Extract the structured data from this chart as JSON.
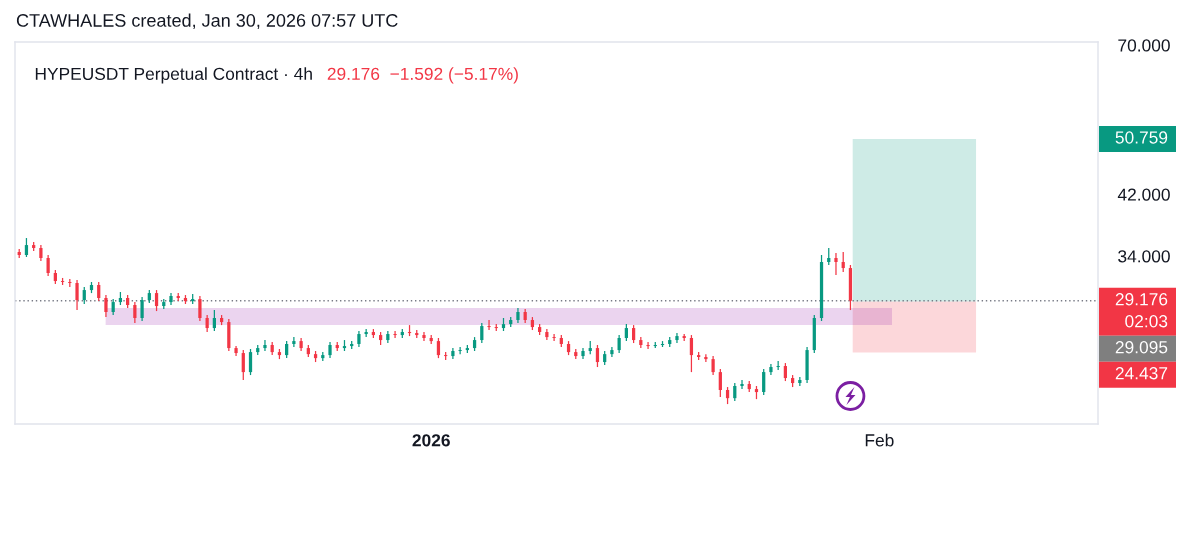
{
  "chart_data": {
    "type": "candlestick",
    "title": "HYPEUSDT Perpetual Contract · 4h",
    "subtitle": "29.176  −1.592 (−5.17%)",
    "annotations": [
      "CTAWHALES created, Jan 30, 2026 07:57 UTC",
      "50.759",
      "29.095",
      "24.437"
    ],
    "x": [
      "2025-12-03T12:00",
      "2025-12-04T00:00",
      "2025-12-04T12:00",
      "2025-12-05T00:00",
      "2025-12-05T12:00",
      "2025-12-06T00:00",
      "2025-12-06T12:00",
      "2025-12-07T00:00",
      "2025-12-07T12:00",
      "2025-12-08T00:00",
      "2025-12-08T12:00",
      "2025-12-09T00:00",
      "2025-12-09T12:00",
      "2025-12-10T00:00",
      "2025-12-10T12:00",
      "2025-12-11T00:00",
      "2025-12-11T12:00",
      "2025-12-12T00:00",
      "2025-12-12T12:00",
      "2025-12-13T00:00",
      "2025-12-13T12:00",
      "2025-12-14T00:00",
      "2025-12-14T12:00",
      "2025-12-15T00:00",
      "2025-12-15T12:00",
      "2025-12-16T00:00",
      "2025-12-16T12:00",
      "2025-12-17T00:00",
      "2025-12-17T12:00",
      "2025-12-18T00:00",
      "2025-12-18T12:00",
      "2025-12-19T00:00",
      "2025-12-19T12:00",
      "2025-12-20T00:00",
      "2025-12-20T12:00",
      "2025-12-21T00:00",
      "2025-12-21T12:00",
      "2025-12-22T00:00",
      "2025-12-22T12:00",
      "2025-12-23T00:00",
      "2025-12-23T12:00",
      "2025-12-24T00:00",
      "2025-12-24T12:00",
      "2025-12-25T00:00",
      "2025-12-25T12:00",
      "2025-12-26T00:00",
      "2025-12-26T12:00",
      "2025-12-27T00:00",
      "2025-12-27T12:00",
      "2025-12-28T00:00",
      "2025-12-28T12:00",
      "2025-12-29T00:00",
      "2025-12-29T12:00",
      "2025-12-30T00:00",
      "2025-12-30T12:00",
      "2025-12-31T00:00",
      "2025-12-31T12:00",
      "2026-01-01T00:00",
      "2026-01-01T12:00",
      "2026-01-02T00:00",
      "2026-01-02T12:00",
      "2026-01-03T00:00",
      "2026-01-03T12:00",
      "2026-01-04T00:00",
      "2026-01-04T12:00",
      "2026-01-05T00:00",
      "2026-01-05T12:00",
      "2026-01-06T00:00",
      "2026-01-06T12:00",
      "2026-01-07T00:00",
      "2026-01-07T12:00",
      "2026-01-08T00:00",
      "2026-01-08T12:00",
      "2026-01-09T00:00",
      "2026-01-09T12:00",
      "2026-01-10T00:00",
      "2026-01-10T12:00",
      "2026-01-11T00:00",
      "2026-01-11T12:00",
      "2026-01-12T00:00",
      "2026-01-12T12:00",
      "2026-01-13T00:00",
      "2026-01-13T12:00",
      "2026-01-14T00:00",
      "2026-01-14T12:00",
      "2026-01-15T00:00",
      "2026-01-15T12:00",
      "2026-01-16T00:00",
      "2026-01-16T12:00",
      "2026-01-17T00:00",
      "2026-01-17T12:00",
      "2026-01-18T00:00",
      "2026-01-18T12:00",
      "2026-01-19T00:00",
      "2026-01-19T12:00",
      "2026-01-20T00:00",
      "2026-01-20T12:00",
      "2026-01-21T00:00",
      "2026-01-21T12:00",
      "2026-01-22T00:00",
      "2026-01-22T12:00",
      "2026-01-23T00:00",
      "2026-01-23T12:00",
      "2026-01-24T00:00",
      "2026-01-24T12:00",
      "2026-01-25T00:00",
      "2026-01-25T12:00",
      "2026-01-26T00:00",
      "2026-01-26T12:00",
      "2026-01-27T00:00",
      "2026-01-27T12:00",
      "2026-01-28T00:00",
      "2026-01-28T12:00",
      "2026-01-29T00:00",
      "2026-01-29T12:00",
      "2026-01-30T00:00"
    ],
    "ohlc": [
      [
        34.47,
        34.83,
        33.77,
        34.12
      ],
      [
        34.12,
        36.16,
        33.89,
        35.3
      ],
      [
        35.3,
        35.67,
        34.59,
        34.95
      ],
      [
        34.95,
        35.3,
        33.43,
        33.77
      ],
      [
        33.77,
        34.12,
        31.75,
        32.08
      ],
      [
        32.08,
        32.41,
        30.9,
        31.21
      ],
      [
        31.21,
        31.54,
        30.79,
        31.11
      ],
      [
        31.11,
        31.43,
        30.58,
        31.0
      ],
      [
        31.0,
        31.32,
        28.26,
        29.24
      ],
      [
        29.24,
        30.58,
        28.85,
        30.26
      ],
      [
        30.26,
        31.11,
        29.95,
        30.79
      ],
      [
        30.79,
        31.11,
        29.14,
        29.45
      ],
      [
        29.45,
        29.75,
        27.59,
        28.07
      ],
      [
        28.07,
        29.34,
        27.78,
        29.04
      ],
      [
        29.04,
        30.06,
        28.75,
        29.45
      ],
      [
        29.45,
        29.75,
        28.46,
        28.75
      ],
      [
        28.75,
        29.04,
        27.03,
        27.5
      ],
      [
        27.5,
        29.55,
        27.22,
        29.24
      ],
      [
        29.24,
        30.26,
        28.95,
        29.95
      ],
      [
        29.95,
        30.26,
        28.16,
        28.65
      ],
      [
        28.65,
        29.34,
        28.36,
        29.04
      ],
      [
        29.04,
        29.95,
        28.75,
        29.65
      ],
      [
        29.65,
        29.95,
        29.14,
        29.45
      ],
      [
        29.45,
        29.75,
        28.85,
        29.14
      ],
      [
        29.14,
        29.85,
        28.85,
        29.34
      ],
      [
        29.34,
        29.65,
        27.22,
        27.5
      ],
      [
        27.5,
        27.78,
        26.21,
        26.57
      ],
      [
        26.57,
        28.26,
        26.3,
        27.5
      ],
      [
        27.5,
        27.78,
        26.84,
        27.12
      ],
      [
        27.12,
        27.4,
        24.56,
        24.81
      ],
      [
        24.81,
        24.98,
        24.14,
        24.39
      ],
      [
        24.39,
        24.64,
        22.24,
        22.85
      ],
      [
        22.85,
        24.73,
        22.62,
        24.47
      ],
      [
        24.47,
        25.07,
        24.22,
        24.81
      ],
      [
        24.81,
        25.5,
        24.56,
        25.07
      ],
      [
        25.07,
        25.33,
        24.22,
        24.47
      ],
      [
        24.47,
        24.73,
        23.89,
        24.22
      ],
      [
        24.22,
        25.41,
        23.97,
        25.16
      ],
      [
        25.16,
        25.76,
        24.9,
        25.41
      ],
      [
        25.41,
        25.68,
        24.56,
        24.81
      ],
      [
        24.81,
        25.07,
        24.06,
        24.3
      ],
      [
        24.3,
        24.56,
        23.65,
        23.97
      ],
      [
        23.97,
        24.47,
        23.73,
        24.22
      ],
      [
        24.22,
        25.33,
        23.97,
        25.07
      ],
      [
        25.07,
        25.33,
        24.56,
        24.81
      ],
      [
        24.81,
        25.5,
        24.56,
        24.98
      ],
      [
        24.98,
        25.41,
        24.73,
        25.16
      ],
      [
        25.16,
        26.3,
        24.9,
        26.03
      ],
      [
        26.03,
        26.48,
        25.76,
        26.21
      ],
      [
        26.21,
        26.48,
        25.68,
        25.94
      ],
      [
        25.94,
        26.21,
        25.07,
        25.5
      ],
      [
        25.5,
        26.3,
        25.24,
        26.03
      ],
      [
        26.03,
        26.3,
        25.68,
        25.94
      ],
      [
        25.94,
        26.48,
        25.68,
        26.21
      ],
      [
        26.21,
        26.84,
        25.85,
        26.12
      ],
      [
        26.12,
        26.39,
        25.68,
        25.94
      ],
      [
        25.94,
        26.21,
        25.41,
        25.68
      ],
      [
        25.68,
        25.94,
        25.16,
        25.41
      ],
      [
        25.41,
        25.68,
        23.97,
        24.22
      ],
      [
        24.22,
        24.47,
        23.81,
        24.14
      ],
      [
        24.14,
        24.81,
        23.89,
        24.56
      ],
      [
        24.56,
        24.9,
        24.3,
        24.64
      ],
      [
        24.64,
        25.07,
        24.39,
        24.81
      ],
      [
        24.81,
        25.76,
        24.56,
        25.5
      ],
      [
        25.5,
        27.03,
        25.24,
        26.75
      ],
      [
        26.75,
        27.31,
        26.39,
        26.66
      ],
      [
        26.66,
        26.93,
        26.3,
        26.57
      ],
      [
        26.57,
        27.5,
        26.3,
        26.93
      ],
      [
        26.93,
        27.59,
        26.66,
        27.31
      ],
      [
        27.31,
        28.46,
        27.03,
        28.07
      ],
      [
        28.07,
        28.36,
        27.03,
        27.31
      ],
      [
        27.31,
        27.59,
        26.39,
        26.66
      ],
      [
        26.66,
        26.93,
        25.94,
        26.21
      ],
      [
        26.21,
        26.48,
        25.5,
        25.76
      ],
      [
        25.76,
        26.03,
        25.41,
        25.68
      ],
      [
        25.68,
        25.94,
        24.9,
        25.16
      ],
      [
        25.16,
        25.41,
        24.22,
        24.47
      ],
      [
        24.47,
        24.73,
        23.89,
        24.14
      ],
      [
        24.14,
        24.81,
        23.89,
        24.56
      ],
      [
        24.56,
        25.41,
        24.3,
        24.81
      ],
      [
        24.81,
        25.07,
        23.25,
        23.65
      ],
      [
        23.65,
        24.56,
        23.41,
        24.3
      ],
      [
        24.3,
        24.9,
        24.06,
        24.64
      ],
      [
        24.64,
        25.94,
        24.39,
        25.68
      ],
      [
        25.68,
        26.93,
        25.41,
        26.57
      ],
      [
        26.57,
        26.84,
        25.24,
        25.5
      ],
      [
        25.5,
        25.76,
        24.81,
        25.07
      ],
      [
        25.07,
        25.33,
        24.73,
        24.98
      ],
      [
        24.98,
        25.33,
        24.81,
        25.07
      ],
      [
        25.07,
        25.41,
        24.9,
        25.16
      ],
      [
        25.16,
        25.76,
        24.9,
        25.5
      ],
      [
        25.5,
        26.12,
        25.24,
        25.85
      ],
      [
        25.85,
        26.03,
        25.41,
        25.68
      ],
      [
        25.68,
        25.94,
        22.85,
        24.22
      ],
      [
        24.22,
        24.47,
        23.81,
        24.06
      ],
      [
        24.06,
        24.3,
        23.65,
        23.89
      ],
      [
        23.89,
        24.14,
        22.62,
        22.85
      ],
      [
        22.85,
        23.09,
        20.98,
        21.49
      ],
      [
        21.49,
        21.71,
        20.48,
        20.9
      ],
      [
        20.9,
        22.01,
        20.69,
        21.79
      ],
      [
        21.79,
        22.24,
        21.56,
        21.94
      ],
      [
        21.94,
        22.16,
        21.34,
        21.56
      ],
      [
        21.56,
        21.79,
        20.83,
        21.34
      ],
      [
        21.34,
        23.09,
        21.12,
        22.85
      ],
      [
        22.85,
        23.49,
        22.62,
        23.25
      ],
      [
        23.25,
        23.73,
        23.01,
        23.33
      ],
      [
        23.33,
        23.57,
        22.16,
        22.39
      ],
      [
        22.39,
        22.62,
        21.71,
        22.01
      ],
      [
        22.01,
        22.47,
        21.79,
        22.24
      ],
      [
        22.24,
        24.9,
        22.01,
        24.64
      ],
      [
        24.64,
        27.78,
        24.39,
        27.5
      ],
      [
        27.5,
        34.12,
        27.22,
        33.31
      ],
      [
        33.31,
        34.95,
        32.97,
        33.77
      ],
      [
        33.77,
        34.36,
        31.86,
        33.31
      ],
      [
        33.31,
        34.47,
        32.19,
        32.63
      ],
      [
        32.63,
        32.97,
        28.26,
        29.176
      ]
    ],
    "colors": [
      "#f23645",
      "#089981",
      "#f23645",
      "#f23645",
      "#f23645",
      "#f23645",
      "#f23645",
      "#f23645",
      "#f23645",
      "#089981",
      "#089981",
      "#f23645",
      "#f23645",
      "#089981",
      "#089981",
      "#f23645",
      "#f23645",
      "#089981",
      "#089981",
      "#f23645",
      "#089981",
      "#089981",
      "#f23645",
      "#f23645",
      "#089981",
      "#f23645",
      "#f23645",
      "#089981",
      "#f23645",
      "#f23645",
      "#f23645",
      "#f23645",
      "#089981",
      "#089981",
      "#089981",
      "#f23645",
      "#f23645",
      "#089981",
      "#089981",
      "#f23645",
      "#f23645",
      "#f23645",
      "#089981",
      "#089981",
      "#f23645",
      "#089981",
      "#089981",
      "#089981",
      "#089981",
      "#f23645",
      "#f23645",
      "#089981",
      "#f23645",
      "#089981",
      "#f23645",
      "#f23645",
      "#f23645",
      "#f23645",
      "#f23645",
      "#f23645",
      "#089981",
      "#089981",
      "#089981",
      "#089981",
      "#089981",
      "#f23645",
      "#f23645",
      "#089981",
      "#089981",
      "#089981",
      "#f23645",
      "#f23645",
      "#f23645",
      "#f23645",
      "#f23645",
      "#f23645",
      "#f23645",
      "#f23645",
      "#089981",
      "#089981",
      "#f23645",
      "#089981",
      "#089981",
      "#089981",
      "#089981",
      "#f23645",
      "#f23645",
      "#f23645",
      "#089981",
      "#089981",
      "#089981",
      "#089981",
      "#f23645",
      "#f23645",
      "#f23645",
      "#f23645",
      "#f23645",
      "#f23645",
      "#f23645",
      "#089981",
      "#089981",
      "#f23645",
      "#f23645",
      "#089981",
      "#089981",
      "#089981",
      "#f23645",
      "#f23645",
      "#089981",
      "#089981",
      "#089981",
      "#089981",
      "#089981",
      "#f23645",
      "#f23645",
      "#f23645"
    ],
    "xlim": [
      "2025-12-03T05:00",
      "2026-02-16T03:00"
    ],
    "ylim": [
      19.13,
      70.75
    ],
    "xticks": [
      {
        "value": "2026-01-01",
        "label": "2026"
      },
      {
        "value": "2026-02-01",
        "label": "Feb"
      }
    ],
    "yticks": [
      {
        "value": 34,
        "label": "34.000"
      },
      {
        "value": 42,
        "label": "42.000"
      },
      {
        "value": 70,
        "label": "70.000"
      }
    ],
    "log": "y",
    "ref_lines": [
      {
        "axis": "y",
        "value": 29.176,
        "label": "29.176\n02:03",
        "color": "#787b86",
        "line_style": "dotted"
      }
    ],
    "bands": [
      {
        "axis": "y",
        "from": 29.095,
        "to": 50.759,
        "color": "#089981"
      },
      {
        "axis": "y",
        "from": 29.095,
        "to": 24.437,
        "color": "#f23645"
      },
      {
        "axis": "y",
        "from": 26.84,
        "to": 28.46,
        "color": "#9c27b0"
      }
    ]
  }
}
